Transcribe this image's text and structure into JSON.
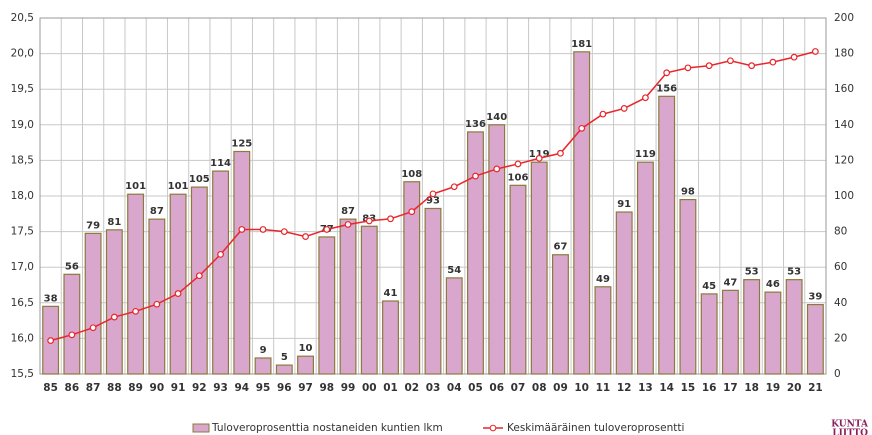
{
  "chart_data": {
    "type": "bar",
    "categories": [
      "85",
      "86",
      "87",
      "88",
      "89",
      "90",
      "91",
      "92",
      "93",
      "94",
      "95",
      "96",
      "97",
      "98",
      "99",
      "00",
      "01",
      "02",
      "03",
      "04",
      "05",
      "06",
      "07",
      "08",
      "09",
      "10",
      "11",
      "12",
      "13",
      "14",
      "15",
      "16",
      "17",
      "18",
      "19",
      "20",
      "21"
    ],
    "series": [
      {
        "name": "Tuloveroprosenttia nostaneiden kuntien lkm",
        "type": "bar",
        "axis": "y2",
        "color": "#d9a6cd",
        "edge": "#8c7a3c",
        "values": [
          38,
          56,
          79,
          81,
          101,
          87,
          101,
          105,
          114,
          125,
          9,
          5,
          10,
          77,
          87,
          83,
          41,
          108,
          93,
          54,
          136,
          140,
          106,
          119,
          67,
          181,
          49,
          91,
          119,
          156,
          98,
          45,
          47,
          53,
          46,
          53,
          39
        ]
      },
      {
        "name": "Keskimääräinen tuloveroprosentti",
        "type": "line",
        "color": "#e8262b",
        "values": [
          15.97,
          16.05,
          16.15,
          16.3,
          16.38,
          16.48,
          16.63,
          16.88,
          17.18,
          17.53,
          17.53,
          17.5,
          17.43,
          17.53,
          17.6,
          17.65,
          17.68,
          17.78,
          18.03,
          18.13,
          18.28,
          18.38,
          18.45,
          18.53,
          18.6,
          18.95,
          19.15,
          19.23,
          19.38,
          19.73,
          19.8,
          19.83,
          19.9,
          19.83,
          19.88,
          19.95,
          20.03
        ]
      }
    ],
    "ylim": [
      15.5,
      20.5
    ],
    "yticks": [
      {
        "value": 15.5,
        "label": "15,5"
      },
      {
        "value": 16.0,
        "label": "16,0"
      },
      {
        "value": 16.5,
        "label": "16,5"
      },
      {
        "value": 17.0,
        "label": "17,0"
      },
      {
        "value": 17.5,
        "label": "17,5"
      },
      {
        "value": 18.0,
        "label": "18,0"
      },
      {
        "value": 18.5,
        "label": "18,5"
      },
      {
        "value": 19.0,
        "label": "19,0"
      },
      {
        "value": 19.5,
        "label": "19,5"
      },
      {
        "value": 20.0,
        "label": "20,0"
      },
      {
        "value": 20.5,
        "label": "20,5"
      }
    ],
    "y2lim": [
      0,
      200
    ],
    "y2ticks": [
      0,
      20,
      40,
      60,
      80,
      100,
      120,
      140,
      160,
      180,
      200
    ],
    "grid": true,
    "logo": [
      "KUNTA",
      "LIITTO"
    ]
  }
}
